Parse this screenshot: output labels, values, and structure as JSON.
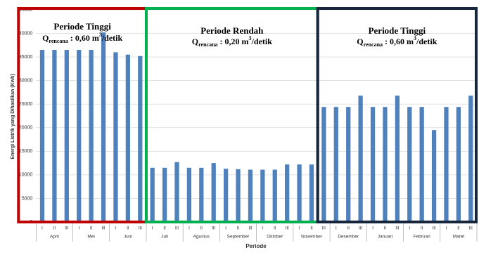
{
  "chart_data": {
    "type": "bar",
    "y_label": "Energi Listrik yang Dihasilkan (Kwh)",
    "x_label": "Periode",
    "categories": [
      "I",
      "II",
      "III",
      "I",
      "II",
      "III",
      "I",
      "II",
      "III",
      "I",
      "II",
      "III",
      "I",
      "II",
      "III",
      "I",
      "II",
      "III",
      "I",
      "II",
      "III",
      "I",
      "II",
      "III",
      "I",
      "II",
      "III",
      "I",
      "II",
      "III",
      "I",
      "II",
      "III",
      "I",
      "II",
      "III"
    ],
    "groups": [
      "April",
      "Mei",
      "Juni",
      "Juli",
      "Agustus",
      "September",
      "Oktober",
      "November",
      "Desember",
      "Januari",
      "Februari",
      "Maret"
    ],
    "values": [
      36500,
      36500,
      36500,
      36500,
      36500,
      40200,
      36000,
      35500,
      35200,
      11500,
      11500,
      12700,
      11500,
      11500,
      12500,
      11300,
      11200,
      11100,
      11100,
      11100,
      12200,
      12200,
      12200,
      24400,
      24400,
      24400,
      26800,
      24400,
      24400,
      26800,
      24400,
      24400,
      19500,
      24400,
      24400,
      26800
    ],
    "color": "#4f81bd",
    "ylim": [
      0,
      45000
    ],
    "yticks": [
      0,
      5000,
      10000,
      15000,
      20000,
      25000,
      30000,
      35000,
      40000,
      45000
    ],
    "grid": true,
    "annotations": [
      {
        "title": "Periode Tinggi",
        "text": [
          "Q",
          "rencana",
          " : 0,60 m",
          "3",
          "/detik"
        ],
        "color": "#c00000"
      },
      {
        "title": "Periode Rendah",
        "text": [
          "Q",
          "rencana",
          " : 0,20 m",
          "3",
          "/detik"
        ],
        "color": "#00b050"
      },
      {
        "title": "Periode Tinggi",
        "text": [
          "Q",
          "rencana",
          " : 0,60 m",
          "3",
          "/detik"
        ],
        "color": "#17263c"
      }
    ]
  }
}
